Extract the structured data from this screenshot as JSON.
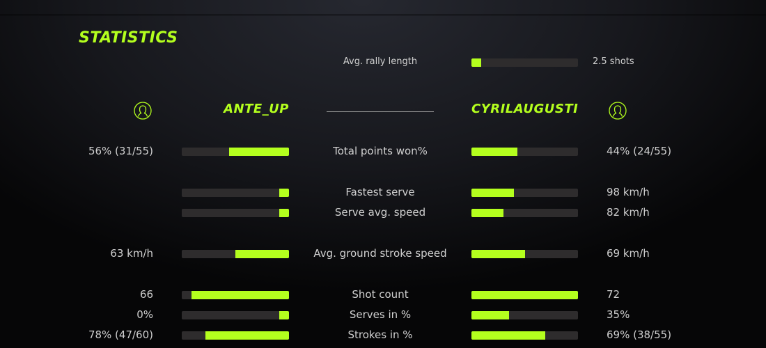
{
  "title": "STATISTICS",
  "accent": "#b4ff1e",
  "rally": {
    "label": "Avg. rally length",
    "value": "2.5 shots",
    "fill": 9
  },
  "players": {
    "left": {
      "name": "ANTE_UP",
      "icon": "user-icon"
    },
    "right": {
      "name": "CYRILAUGUSTI",
      "icon": "user-icon"
    }
  },
  "stats": [
    {
      "label": "Total points won%",
      "left": "56% (31/55)",
      "right": "44% (24/55)",
      "left_fill": 56,
      "right_fill": 43
    },
    {
      "label": "Fastest serve",
      "left": "",
      "right": "98 km/h",
      "left_fill": 9,
      "right_fill": 40
    },
    {
      "label": "Serve avg. speed",
      "left": "",
      "right": "82 km/h",
      "left_fill": 9,
      "right_fill": 30
    },
    {
      "label": "Avg. ground stroke speed",
      "left": "63 km/h",
      "right": "69 km/h",
      "left_fill": 50,
      "right_fill": 50
    },
    {
      "label": "Shot count",
      "left": "66",
      "right": "72",
      "left_fill": 91,
      "right_fill": 100
    },
    {
      "label": "Serves in %",
      "left": "0%",
      "right": "35%",
      "left_fill": 9,
      "right_fill": 35
    },
    {
      "label": "Strokes in %",
      "left": "78% (47/60)",
      "right": "69% (38/55)",
      "left_fill": 78,
      "right_fill": 69
    }
  ]
}
